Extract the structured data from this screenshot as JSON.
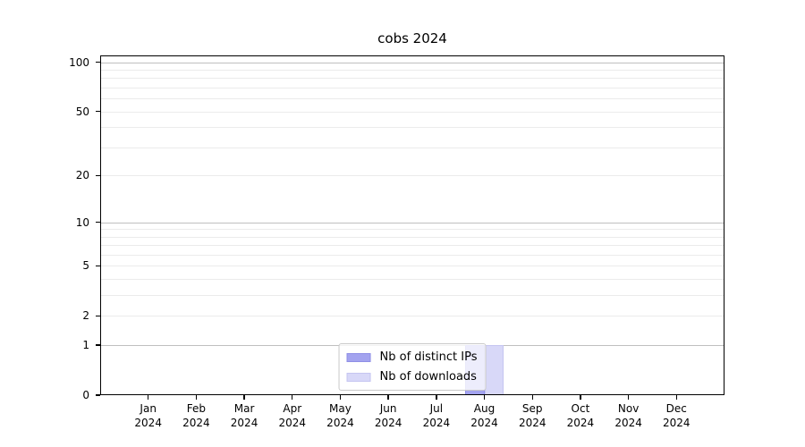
{
  "chart_data": {
    "type": "bar",
    "title": "cobs 2024",
    "categories": [
      "Jan",
      "Feb",
      "Mar",
      "Apr",
      "May",
      "Jun",
      "Jul",
      "Aug",
      "Sep",
      "Oct",
      "Nov",
      "Dec"
    ],
    "x_year_label": "2024",
    "series": [
      {
        "name": "Nb of distinct IPs",
        "color": "#a3a3ef",
        "edge_color": "#8f8fe6",
        "values": [
          0,
          0,
          0,
          0,
          0,
          0,
          0,
          1,
          0,
          0,
          0,
          0
        ]
      },
      {
        "name": "Nb of downloads",
        "color": "#d8d8f8",
        "edge_color": "#c5c5f1",
        "values": [
          0,
          0,
          0,
          0,
          0,
          0,
          0,
          1,
          0,
          0,
          0,
          0
        ]
      }
    ],
    "yscale": "log1p",
    "ylim": [
      0,
      110
    ],
    "y_ticks": [
      100,
      50,
      20,
      10,
      5,
      2,
      1,
      0
    ],
    "y_major_grid": [
      100,
      10,
      1
    ],
    "y_minor_grid": [
      90,
      80,
      70,
      60,
      50,
      40,
      30,
      20,
      9,
      8,
      7,
      6,
      5,
      4,
      3,
      2
    ],
    "grid": true,
    "legend_position": "lower center",
    "bar_width_fraction": 0.4,
    "colors": {
      "grid_major": "#bfbfbf",
      "grid_minor": "#ebebeb",
      "axis": "#000000",
      "text": "#000000",
      "legend_border": "#c9c9c9"
    }
  }
}
